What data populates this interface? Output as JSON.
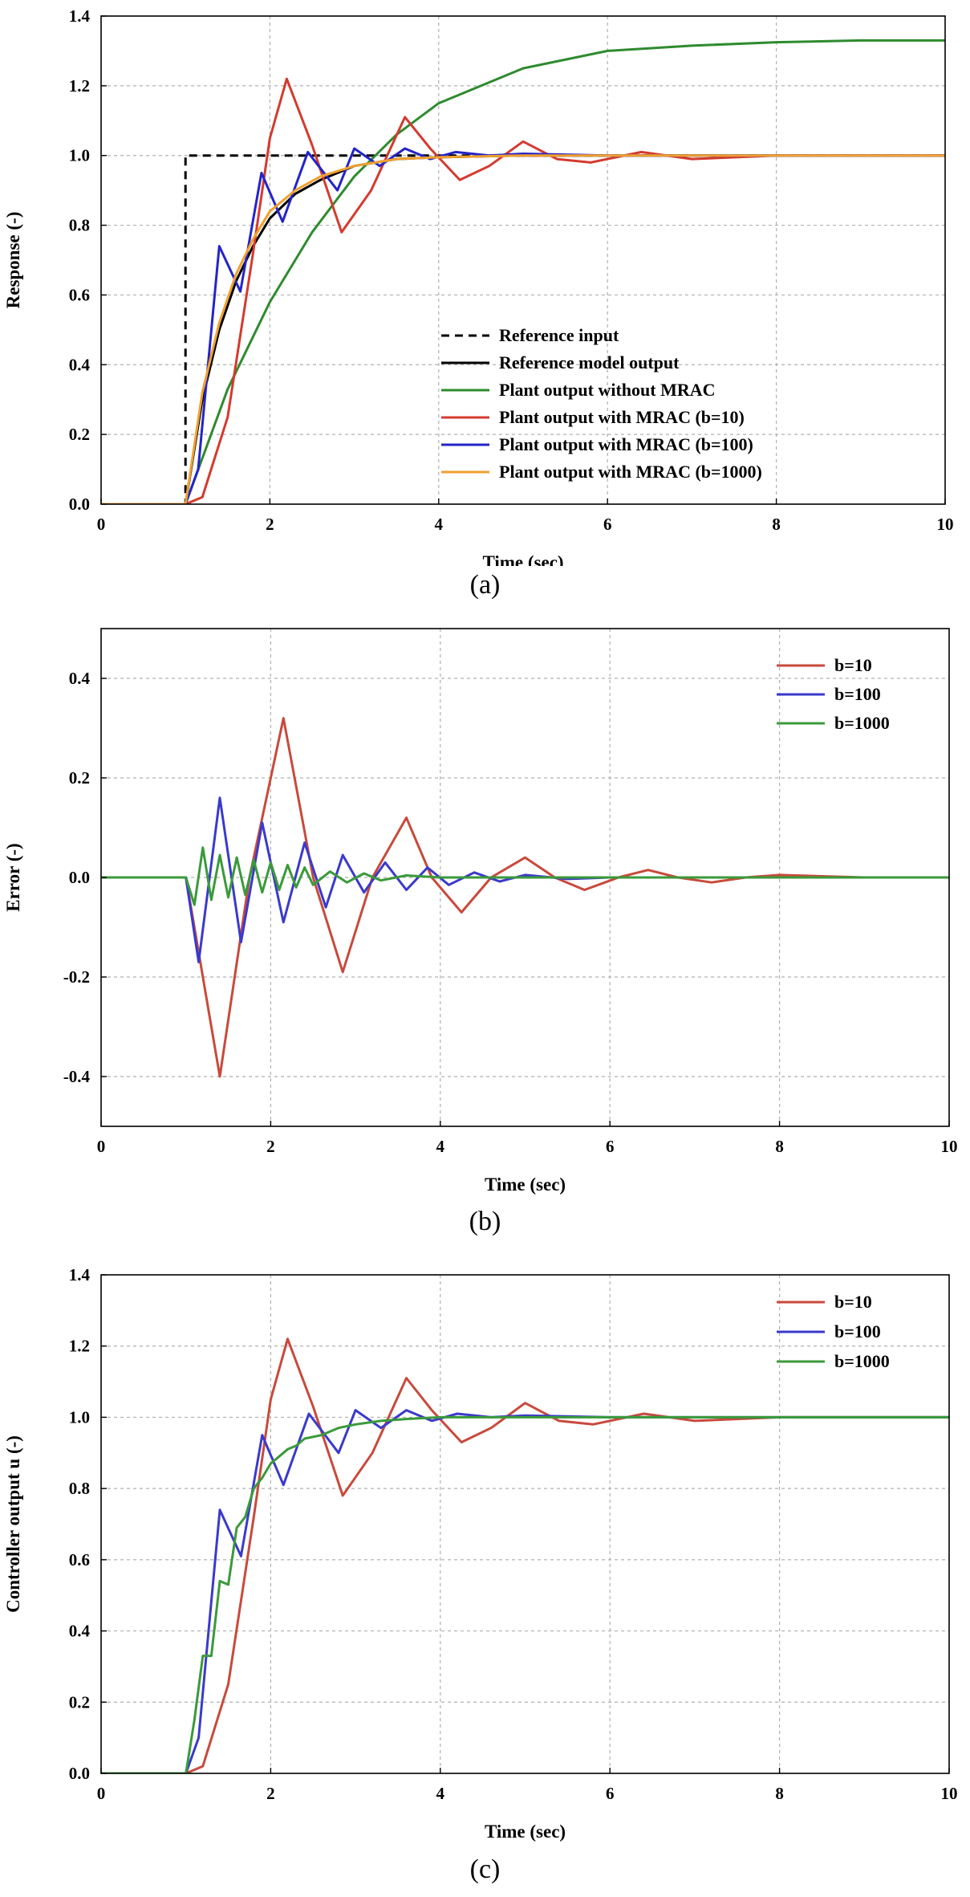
{
  "chart_data": [
    {
      "panel_caption": "(a)",
      "type": "line",
      "xlabel": "Time (sec)",
      "ylabel": "Response (-)",
      "xlim": [
        0,
        10
      ],
      "ylim": [
        0,
        1.4
      ],
      "xticks": [
        "0",
        "2",
        "4",
        "6",
        "8",
        "10"
      ],
      "yticks": [
        "0.0",
        "0.2",
        "0.4",
        "0.6",
        "0.8",
        "1.0",
        "1.2",
        "1.4"
      ],
      "grid": true,
      "legend_position": "bottom-right",
      "series": [
        {
          "name": "Reference input",
          "color": "#000000",
          "dash": true,
          "x": [
            0,
            1.0,
            1.0,
            10
          ],
          "y": [
            0,
            0,
            1.0,
            1.0
          ]
        },
        {
          "name": "Reference model output",
          "color": "#000000",
          "x": [
            0,
            1.0,
            1.2,
            1.4,
            1.6,
            1.8,
            2.0,
            2.3,
            2.6,
            3.0,
            3.5,
            4.0,
            5.0,
            6.0,
            8.0,
            10.0
          ],
          "y": [
            0,
            0,
            0.3,
            0.5,
            0.64,
            0.74,
            0.82,
            0.89,
            0.93,
            0.97,
            0.99,
            0.995,
            1.0,
            1.0,
            1.0,
            1.0
          ]
        },
        {
          "name": "Plant output without MRAC",
          "color": "#2e8b2e",
          "x": [
            0,
            1.0,
            1.5,
            2.0,
            2.5,
            3.0,
            3.5,
            4.0,
            5.0,
            6.0,
            7.0,
            8.0,
            9.0,
            10.0
          ],
          "y": [
            0,
            0,
            0.33,
            0.58,
            0.78,
            0.94,
            1.06,
            1.15,
            1.25,
            1.3,
            1.315,
            1.325,
            1.33,
            1.33
          ]
        },
        {
          "name": "Plant output with MRAC (b=10)",
          "color": "#d43a2f",
          "x": [
            0,
            1.0,
            1.2,
            1.5,
            1.8,
            2.0,
            2.2,
            2.5,
            2.85,
            3.2,
            3.6,
            3.9,
            4.25,
            4.6,
            5.0,
            5.4,
            5.8,
            6.4,
            7.0,
            8.0,
            9.0,
            10.0
          ],
          "y": [
            0,
            0,
            0.02,
            0.25,
            0.72,
            1.05,
            1.22,
            1.03,
            0.78,
            0.9,
            1.11,
            1.02,
            0.93,
            0.97,
            1.04,
            0.99,
            0.98,
            1.01,
            0.99,
            1.0,
            1.0,
            1.0
          ]
        },
        {
          "name": "Plant output with MRAC (b=100)",
          "color": "#2424c8",
          "x": [
            0,
            1.0,
            1.15,
            1.4,
            1.65,
            1.9,
            2.15,
            2.45,
            2.8,
            3.0,
            3.3,
            3.6,
            3.9,
            4.2,
            4.6,
            5.0,
            6.0,
            8.0,
            10.0
          ],
          "y": [
            0,
            0,
            0.1,
            0.74,
            0.61,
            0.95,
            0.81,
            1.01,
            0.9,
            1.02,
            0.97,
            1.02,
            0.99,
            1.01,
            1.0,
            1.005,
            1.0,
            1.0,
            1.0
          ]
        },
        {
          "name": "Plant output with MRAC (b=1000)",
          "color": "#f0a030",
          "x": [
            0,
            1.0,
            1.2,
            1.4,
            1.6,
            1.8,
            2.0,
            2.3,
            2.6,
            3.0,
            3.5,
            4.0,
            5.0,
            6.0,
            8.0,
            10.0
          ],
          "y": [
            0,
            0,
            0.32,
            0.52,
            0.66,
            0.76,
            0.84,
            0.9,
            0.94,
            0.97,
            0.99,
            0.995,
            1.0,
            1.0,
            1.0,
            1.0
          ]
        }
      ]
    },
    {
      "panel_caption": "(b)",
      "type": "line",
      "xlabel": "Time (sec)",
      "ylabel": "Error (-)",
      "xlim": [
        0,
        10
      ],
      "ylim": [
        -0.5,
        0.5
      ],
      "xticks": [
        "0",
        "2",
        "4",
        "6",
        "8",
        "10"
      ],
      "yticks": [
        "-0.4",
        "-0.2",
        "0.0",
        "0.2",
        "0.4"
      ],
      "grid": true,
      "legend_position": "top-right",
      "series": [
        {
          "name": "b=10",
          "color": "#c84a3c",
          "x": [
            0,
            1.0,
            1.4,
            1.75,
            2.15,
            2.5,
            2.85,
            3.2,
            3.6,
            3.9,
            4.25,
            4.6,
            5.0,
            5.35,
            5.7,
            6.1,
            6.45,
            6.8,
            7.2,
            7.6,
            8.0,
            9.0,
            10.0
          ],
          "y": [
            0,
            0,
            -0.4,
            0.0,
            0.32,
            0.0,
            -0.19,
            0.0,
            0.12,
            0.0,
            -0.07,
            0.0,
            0.04,
            0.0,
            -0.025,
            0.0,
            0.015,
            0.0,
            -0.01,
            0.0,
            0.005,
            0.0,
            0.0
          ]
        },
        {
          "name": "b=100",
          "color": "#3a3acc",
          "x": [
            0,
            1.0,
            1.15,
            1.4,
            1.65,
            1.9,
            2.15,
            2.4,
            2.65,
            2.85,
            3.1,
            3.35,
            3.6,
            3.85,
            4.1,
            4.4,
            4.7,
            5.0,
            5.5,
            6.0,
            10.0
          ],
          "y": [
            0,
            0,
            -0.17,
            0.16,
            -0.13,
            0.11,
            -0.09,
            0.07,
            -0.06,
            0.045,
            -0.03,
            0.03,
            -0.025,
            0.02,
            -0.015,
            0.01,
            -0.008,
            0.005,
            -0.003,
            0.0,
            0.0
          ]
        },
        {
          "name": "b=1000",
          "color": "#3a9a3a",
          "x": [
            0,
            1.0,
            1.1,
            1.2,
            1.3,
            1.4,
            1.5,
            1.6,
            1.7,
            1.8,
            1.9,
            2.0,
            2.1,
            2.2,
            2.3,
            2.4,
            2.5,
            2.7,
            2.9,
            3.1,
            3.3,
            3.6,
            4.0,
            10.0
          ],
          "y": [
            0,
            0,
            -0.055,
            0.06,
            -0.045,
            0.045,
            -0.04,
            0.04,
            -0.035,
            0.035,
            -0.03,
            0.03,
            -0.025,
            0.025,
            -0.02,
            0.02,
            -0.015,
            0.012,
            -0.01,
            0.008,
            -0.006,
            0.004,
            0.0,
            0.0
          ]
        }
      ]
    },
    {
      "panel_caption": "(c)",
      "type": "line",
      "xlabel": "Time (sec)",
      "ylabel": "Controller output u (-)",
      "xlim": [
        0,
        10
      ],
      "ylim": [
        0,
        1.4
      ],
      "xticks": [
        "0",
        "2",
        "4",
        "6",
        "8",
        "10"
      ],
      "yticks": [
        "0.0",
        "0.2",
        "0.4",
        "0.6",
        "0.8",
        "1.0",
        "1.2",
        "1.4"
      ],
      "grid": true,
      "legend_position": "top-right",
      "series": [
        {
          "name": "b=10",
          "color": "#c84a3c",
          "x": [
            0,
            1.0,
            1.2,
            1.5,
            1.8,
            2.0,
            2.2,
            2.5,
            2.85,
            3.2,
            3.6,
            3.9,
            4.25,
            4.6,
            5.0,
            5.4,
            5.8,
            6.4,
            7.0,
            8.0,
            9.0,
            10.0
          ],
          "y": [
            0,
            0,
            0.02,
            0.25,
            0.72,
            1.05,
            1.22,
            1.03,
            0.78,
            0.9,
            1.11,
            1.02,
            0.93,
            0.97,
            1.04,
            0.99,
            0.98,
            1.01,
            0.99,
            1.0,
            1.0,
            1.0
          ]
        },
        {
          "name": "b=100",
          "color": "#3a3acc",
          "x": [
            0,
            1.0,
            1.15,
            1.4,
            1.65,
            1.9,
            2.15,
            2.45,
            2.8,
            3.0,
            3.3,
            3.6,
            3.9,
            4.2,
            4.6,
            5.0,
            6.0,
            8.0,
            10.0
          ],
          "y": [
            0,
            0,
            0.1,
            0.74,
            0.61,
            0.95,
            0.81,
            1.01,
            0.9,
            1.02,
            0.97,
            1.02,
            0.99,
            1.01,
            1.0,
            1.005,
            1.0,
            1.0,
            1.0
          ]
        },
        {
          "name": "b=1000",
          "color": "#3a9a3a",
          "x": [
            0,
            1.0,
            1.1,
            1.2,
            1.3,
            1.4,
            1.5,
            1.6,
            1.7,
            1.8,
            1.9,
            2.0,
            2.1,
            2.2,
            2.3,
            2.4,
            2.6,
            2.8,
            3.0,
            3.3,
            3.6,
            4.0,
            5.0,
            6.0,
            8.0,
            10.0
          ],
          "y": [
            0,
            0,
            0.15,
            0.33,
            0.33,
            0.54,
            0.53,
            0.69,
            0.72,
            0.8,
            0.83,
            0.87,
            0.89,
            0.91,
            0.92,
            0.94,
            0.95,
            0.97,
            0.98,
            0.99,
            0.995,
            1.0,
            1.0,
            1.0,
            1.0,
            1.0
          ]
        }
      ]
    }
  ]
}
